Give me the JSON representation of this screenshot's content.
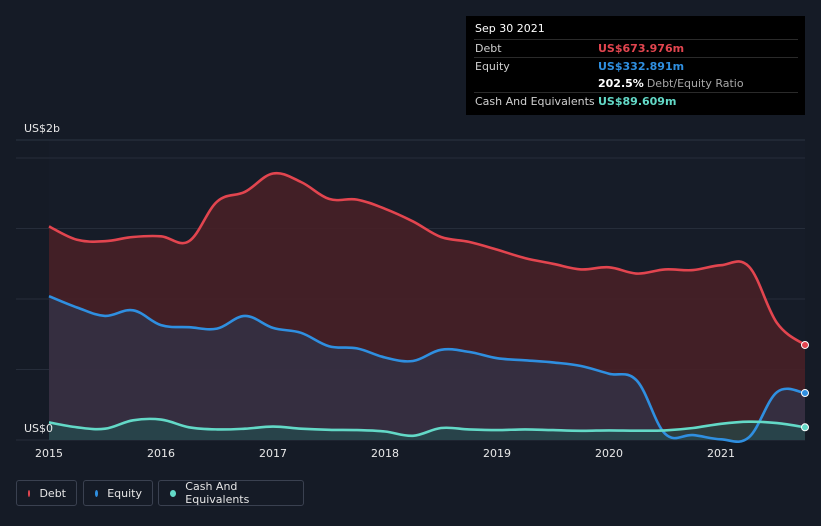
{
  "tooltip": {
    "date": "Sep 30 2021",
    "debt_label": "Debt",
    "debt_value": "US$673.976m",
    "equity_label": "Equity",
    "equity_value": "US$332.891m",
    "ratio_value": "202.5%",
    "ratio_label": "Debt/Equity Ratio",
    "cash_label": "Cash And Equivalents",
    "cash_value": "US$89.609m"
  },
  "legend": {
    "debt": "Debt",
    "equity": "Equity",
    "cash": "Cash And Equivalents"
  },
  "colors": {
    "debt": "#e2454f",
    "equity": "#2f8fe0",
    "cash": "#63d9c7",
    "background": "#151b26"
  },
  "chart_data": {
    "type": "area",
    "title": "",
    "xlabel": "",
    "ylabel": "",
    "y_top_label": "US$2b",
    "y_bottom_label": "US$0",
    "ylim": [
      0,
      2000
    ],
    "xlim": [
      2015.0,
      2021.75
    ],
    "x_ticks": [
      "2015",
      "2016",
      "2017",
      "2018",
      "2019",
      "2020",
      "2021"
    ],
    "series": [
      {
        "name": "Debt",
        "points": [
          [
            2015.0,
            1515
          ],
          [
            2015.25,
            1420
          ],
          [
            2015.5,
            1410
          ],
          [
            2015.75,
            1440
          ],
          [
            2016.0,
            1445
          ],
          [
            2016.25,
            1410
          ],
          [
            2016.5,
            1690
          ],
          [
            2016.75,
            1760
          ],
          [
            2017.0,
            1890
          ],
          [
            2017.25,
            1830
          ],
          [
            2017.5,
            1710
          ],
          [
            2017.75,
            1705
          ],
          [
            2018.0,
            1640
          ],
          [
            2018.25,
            1550
          ],
          [
            2018.5,
            1440
          ],
          [
            2018.75,
            1405
          ],
          [
            2019.0,
            1350
          ],
          [
            2019.25,
            1290
          ],
          [
            2019.5,
            1250
          ],
          [
            2019.75,
            1210
          ],
          [
            2020.0,
            1225
          ],
          [
            2020.25,
            1180
          ],
          [
            2020.5,
            1210
          ],
          [
            2020.75,
            1205
          ],
          [
            2021.0,
            1240
          ],
          [
            2021.25,
            1230
          ],
          [
            2021.5,
            830
          ],
          [
            2021.75,
            674
          ]
        ]
      },
      {
        "name": "Equity",
        "points": [
          [
            2015.0,
            1020
          ],
          [
            2015.25,
            940
          ],
          [
            2015.5,
            880
          ],
          [
            2015.75,
            920
          ],
          [
            2016.0,
            815
          ],
          [
            2016.25,
            800
          ],
          [
            2016.5,
            790
          ],
          [
            2016.75,
            880
          ],
          [
            2017.0,
            795
          ],
          [
            2017.25,
            760
          ],
          [
            2017.5,
            665
          ],
          [
            2017.75,
            650
          ],
          [
            2018.0,
            585
          ],
          [
            2018.25,
            560
          ],
          [
            2018.5,
            640
          ],
          [
            2018.75,
            625
          ],
          [
            2019.0,
            580
          ],
          [
            2019.25,
            565
          ],
          [
            2019.5,
            550
          ],
          [
            2019.75,
            525
          ],
          [
            2020.0,
            470
          ],
          [
            2020.25,
            420
          ],
          [
            2020.5,
            45
          ],
          [
            2020.75,
            35
          ],
          [
            2021.0,
            5
          ],
          [
            2021.25,
            20
          ],
          [
            2021.5,
            340
          ],
          [
            2021.75,
            333
          ]
        ]
      },
      {
        "name": "Cash And Equivalents",
        "points": [
          [
            2015.0,
            125
          ],
          [
            2015.25,
            90
          ],
          [
            2015.5,
            80
          ],
          [
            2015.75,
            140
          ],
          [
            2016.0,
            145
          ],
          [
            2016.25,
            90
          ],
          [
            2016.5,
            75
          ],
          [
            2016.75,
            80
          ],
          [
            2017.0,
            95
          ],
          [
            2017.25,
            80
          ],
          [
            2017.5,
            72
          ],
          [
            2017.75,
            70
          ],
          [
            2018.0,
            60
          ],
          [
            2018.25,
            30
          ],
          [
            2018.5,
            85
          ],
          [
            2018.75,
            75
          ],
          [
            2019.0,
            70
          ],
          [
            2019.25,
            75
          ],
          [
            2019.5,
            70
          ],
          [
            2019.75,
            65
          ],
          [
            2020.0,
            68
          ],
          [
            2020.25,
            66
          ],
          [
            2020.5,
            68
          ],
          [
            2020.75,
            85
          ],
          [
            2021.0,
            115
          ],
          [
            2021.25,
            130
          ],
          [
            2021.5,
            120
          ],
          [
            2021.75,
            90
          ]
        ]
      }
    ]
  }
}
